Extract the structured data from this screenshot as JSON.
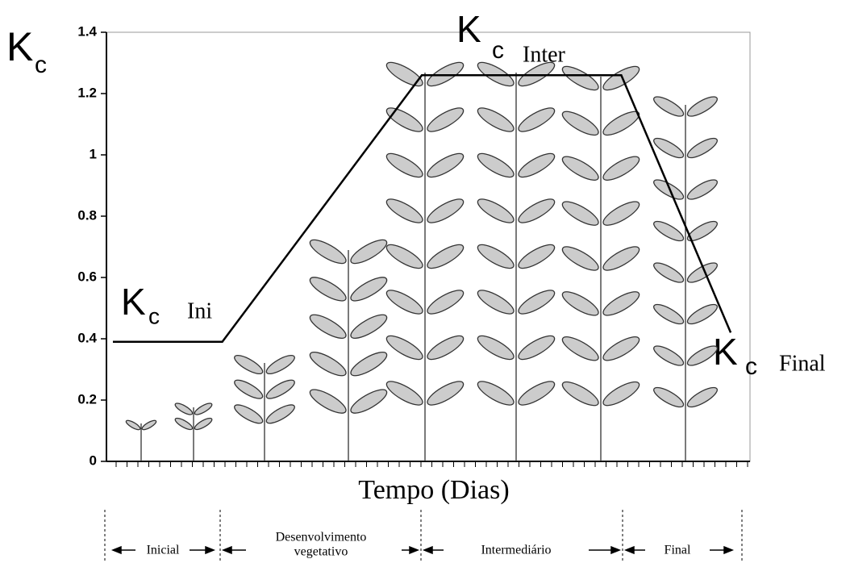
{
  "chart_data": {
    "type": "line",
    "y_label": {
      "symbol": "K",
      "subscript": "c"
    },
    "x_label": "Tempo (Dias)",
    "x": [
      1,
      18,
      49,
      80,
      97
    ],
    "values": [
      0.39,
      0.39,
      1.26,
      1.26,
      0.42
    ],
    "color": "#000000",
    "xlim": [
      0,
      100
    ],
    "ylim": [
      0,
      1.4
    ],
    "yticks": [
      0,
      0.2,
      0.4,
      0.6,
      0.8,
      1,
      1.2,
      1.4
    ],
    "annotations": [
      {
        "symbol": "K",
        "subscript": "c",
        "label": "Ini"
      },
      {
        "symbol": "K",
        "subscript": "c",
        "label": "Inter"
      },
      {
        "symbol": "K",
        "subscript": "c",
        "label": "Final"
      }
    ],
    "stages": [
      "Inicial",
      "Desenvolvimento",
      "vegetativo",
      "Intermediário",
      "Final"
    ]
  }
}
